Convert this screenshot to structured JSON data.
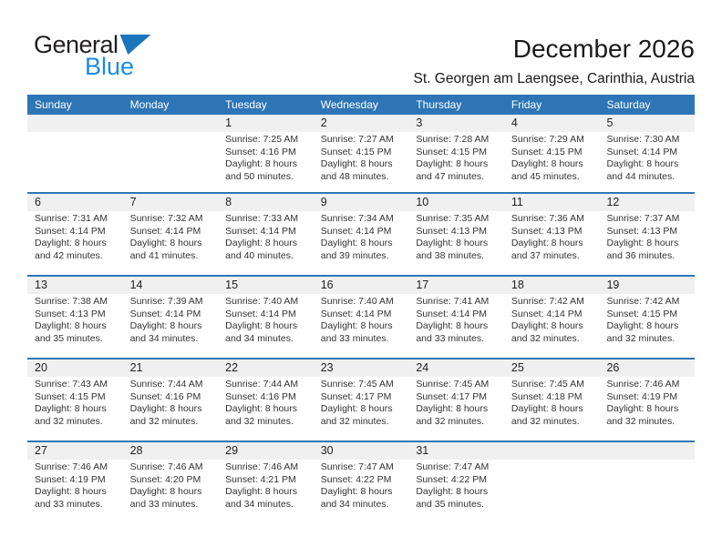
{
  "logo": {
    "general": "General",
    "blue": "Blue",
    "triangle_icon": "blue-sail-triangle"
  },
  "header": {
    "title": "December 2026",
    "subtitle": "St. Georgen am Laengsee, Carinthia, Austria"
  },
  "colors": {
    "header_bar_blue": "#2e75b6",
    "week_separator_blue": "#2e75b6",
    "day_band_gray": "#f0f0f0",
    "logo_blue": "#1b75bc",
    "cell_text": "#333333"
  },
  "calendar": {
    "day_headers": [
      "Sunday",
      "Monday",
      "Tuesday",
      "Wednesday",
      "Thursday",
      "Friday",
      "Saturday"
    ],
    "weeks": [
      [
        {
          "day": "",
          "lines": []
        },
        {
          "day": "",
          "lines": []
        },
        {
          "day": "1",
          "lines": [
            "Sunrise: 7:25 AM",
            "Sunset: 4:16 PM",
            "Daylight: 8 hours and 50 minutes."
          ]
        },
        {
          "day": "2",
          "lines": [
            "Sunrise: 7:27 AM",
            "Sunset: 4:15 PM",
            "Daylight: 8 hours and 48 minutes."
          ]
        },
        {
          "day": "3",
          "lines": [
            "Sunrise: 7:28 AM",
            "Sunset: 4:15 PM",
            "Daylight: 8 hours and 47 minutes."
          ]
        },
        {
          "day": "4",
          "lines": [
            "Sunrise: 7:29 AM",
            "Sunset: 4:15 PM",
            "Daylight: 8 hours and 45 minutes."
          ]
        },
        {
          "day": "5",
          "lines": [
            "Sunrise: 7:30 AM",
            "Sunset: 4:14 PM",
            "Daylight: 8 hours and 44 minutes."
          ]
        }
      ],
      [
        {
          "day": "6",
          "lines": [
            "Sunrise: 7:31 AM",
            "Sunset: 4:14 PM",
            "Daylight: 8 hours and 42 minutes."
          ]
        },
        {
          "day": "7",
          "lines": [
            "Sunrise: 7:32 AM",
            "Sunset: 4:14 PM",
            "Daylight: 8 hours and 41 minutes."
          ]
        },
        {
          "day": "8",
          "lines": [
            "Sunrise: 7:33 AM",
            "Sunset: 4:14 PM",
            "Daylight: 8 hours and 40 minutes."
          ]
        },
        {
          "day": "9",
          "lines": [
            "Sunrise: 7:34 AM",
            "Sunset: 4:14 PM",
            "Daylight: 8 hours and 39 minutes."
          ]
        },
        {
          "day": "10",
          "lines": [
            "Sunrise: 7:35 AM",
            "Sunset: 4:13 PM",
            "Daylight: 8 hours and 38 minutes."
          ]
        },
        {
          "day": "11",
          "lines": [
            "Sunrise: 7:36 AM",
            "Sunset: 4:13 PM",
            "Daylight: 8 hours and 37 minutes."
          ]
        },
        {
          "day": "12",
          "lines": [
            "Sunrise: 7:37 AM",
            "Sunset: 4:13 PM",
            "Daylight: 8 hours and 36 minutes."
          ]
        }
      ],
      [
        {
          "day": "13",
          "lines": [
            "Sunrise: 7:38 AM",
            "Sunset: 4:13 PM",
            "Daylight: 8 hours and 35 minutes."
          ]
        },
        {
          "day": "14",
          "lines": [
            "Sunrise: 7:39 AM",
            "Sunset: 4:14 PM",
            "Daylight: 8 hours and 34 minutes."
          ]
        },
        {
          "day": "15",
          "lines": [
            "Sunrise: 7:40 AM",
            "Sunset: 4:14 PM",
            "Daylight: 8 hours and 34 minutes."
          ]
        },
        {
          "day": "16",
          "lines": [
            "Sunrise: 7:40 AM",
            "Sunset: 4:14 PM",
            "Daylight: 8 hours and 33 minutes."
          ]
        },
        {
          "day": "17",
          "lines": [
            "Sunrise: 7:41 AM",
            "Sunset: 4:14 PM",
            "Daylight: 8 hours and 33 minutes."
          ]
        },
        {
          "day": "18",
          "lines": [
            "Sunrise: 7:42 AM",
            "Sunset: 4:14 PM",
            "Daylight: 8 hours and 32 minutes."
          ]
        },
        {
          "day": "19",
          "lines": [
            "Sunrise: 7:42 AM",
            "Sunset: 4:15 PM",
            "Daylight: 8 hours and 32 minutes."
          ]
        }
      ],
      [
        {
          "day": "20",
          "lines": [
            "Sunrise: 7:43 AM",
            "Sunset: 4:15 PM",
            "Daylight: 8 hours and 32 minutes."
          ]
        },
        {
          "day": "21",
          "lines": [
            "Sunrise: 7:44 AM",
            "Sunset: 4:16 PM",
            "Daylight: 8 hours and 32 minutes."
          ]
        },
        {
          "day": "22",
          "lines": [
            "Sunrise: 7:44 AM",
            "Sunset: 4:16 PM",
            "Daylight: 8 hours and 32 minutes."
          ]
        },
        {
          "day": "23",
          "lines": [
            "Sunrise: 7:45 AM",
            "Sunset: 4:17 PM",
            "Daylight: 8 hours and 32 minutes."
          ]
        },
        {
          "day": "24",
          "lines": [
            "Sunrise: 7:45 AM",
            "Sunset: 4:17 PM",
            "Daylight: 8 hours and 32 minutes."
          ]
        },
        {
          "day": "25",
          "lines": [
            "Sunrise: 7:45 AM",
            "Sunset: 4:18 PM",
            "Daylight: 8 hours and 32 minutes."
          ]
        },
        {
          "day": "26",
          "lines": [
            "Sunrise: 7:46 AM",
            "Sunset: 4:19 PM",
            "Daylight: 8 hours and 32 minutes."
          ]
        }
      ],
      [
        {
          "day": "27",
          "lines": [
            "Sunrise: 7:46 AM",
            "Sunset: 4:19 PM",
            "Daylight: 8 hours and 33 minutes."
          ]
        },
        {
          "day": "28",
          "lines": [
            "Sunrise: 7:46 AM",
            "Sunset: 4:20 PM",
            "Daylight: 8 hours and 33 minutes."
          ]
        },
        {
          "day": "29",
          "lines": [
            "Sunrise: 7:46 AM",
            "Sunset: 4:21 PM",
            "Daylight: 8 hours and 34 minutes."
          ]
        },
        {
          "day": "30",
          "lines": [
            "Sunrise: 7:47 AM",
            "Sunset: 4:22 PM",
            "Daylight: 8 hours and 34 minutes."
          ]
        },
        {
          "day": "31",
          "lines": [
            "Sunrise: 7:47 AM",
            "Sunset: 4:22 PM",
            "Daylight: 8 hours and 35 minutes."
          ]
        },
        {
          "day": "",
          "lines": []
        },
        {
          "day": "",
          "lines": []
        }
      ]
    ]
  }
}
